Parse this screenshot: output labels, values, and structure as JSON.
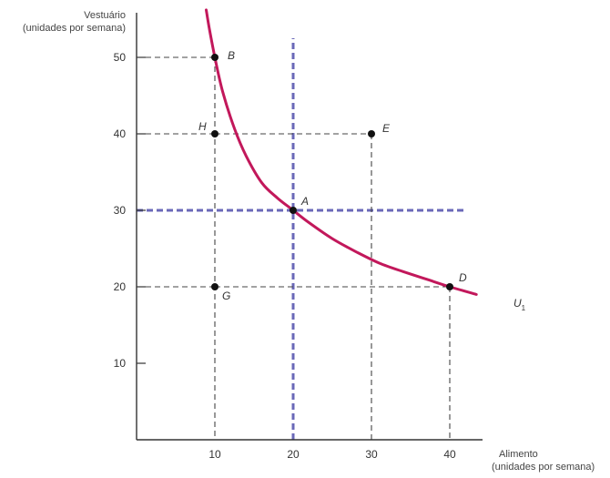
{
  "chart_data": {
    "type": "line",
    "ylabel_lines": [
      "Vestuário",
      "(unidades por semana)"
    ],
    "xlabel_lines": [
      "Alimento",
      "(unidades por semana)"
    ],
    "xlim": [
      0,
      45.5
    ],
    "ylim": [
      0,
      56
    ],
    "x_ticks": [
      10,
      20,
      30,
      40
    ],
    "y_ticks": [
      10,
      20,
      30,
      40,
      50
    ],
    "grid": false,
    "series": [
      {
        "name": "U1",
        "label": "U",
        "label_subscript": "1",
        "color": "#c2185b",
        "x": [
          8.9,
          9.3,
          10,
          11,
          12.5,
          14,
          16,
          18,
          20,
          22,
          25,
          28,
          31,
          34,
          37,
          40,
          43.4
        ],
        "y": [
          56.2,
          53.7,
          50,
          45.5,
          40.7,
          37.1,
          33.6,
          31.6,
          30,
          28.4,
          26.3,
          24.6,
          23.1,
          22,
          21,
          20,
          19
        ]
      }
    ],
    "points": [
      {
        "label": "B",
        "x": 10,
        "y": 50
      },
      {
        "label": "H",
        "x": 10,
        "y": 40
      },
      {
        "label": "E",
        "x": 30,
        "y": 40
      },
      {
        "label": "A",
        "x": 20,
        "y": 30
      },
      {
        "label": "D",
        "x": 40,
        "y": 20
      },
      {
        "label": "G",
        "x": 10,
        "y": 20
      }
    ],
    "guides": [
      {
        "from": "B",
        "to_axes": [
          "x",
          "y"
        ]
      },
      {
        "from": "H",
        "to_axes": [
          "y"
        ]
      },
      {
        "from": "H",
        "to_point": "E"
      },
      {
        "from": "E",
        "to_axes": [
          "x"
        ]
      },
      {
        "from": "G",
        "to_point": "D"
      },
      {
        "from": "G",
        "to_axes": [
          "y"
        ]
      },
      {
        "from": "D",
        "to_axes": [
          "x"
        ]
      }
    ],
    "reference_lines": {
      "color": "#6a68b8",
      "vertical": {
        "x": 20,
        "y_range": [
          0,
          52.5
        ]
      },
      "horizontal": {
        "y": 30,
        "x_range": [
          0,
          42
        ]
      }
    },
    "colors": {
      "curve": "#c2185b",
      "reference": "#6a68b8",
      "guide": "#444444",
      "point": "#111111"
    }
  }
}
